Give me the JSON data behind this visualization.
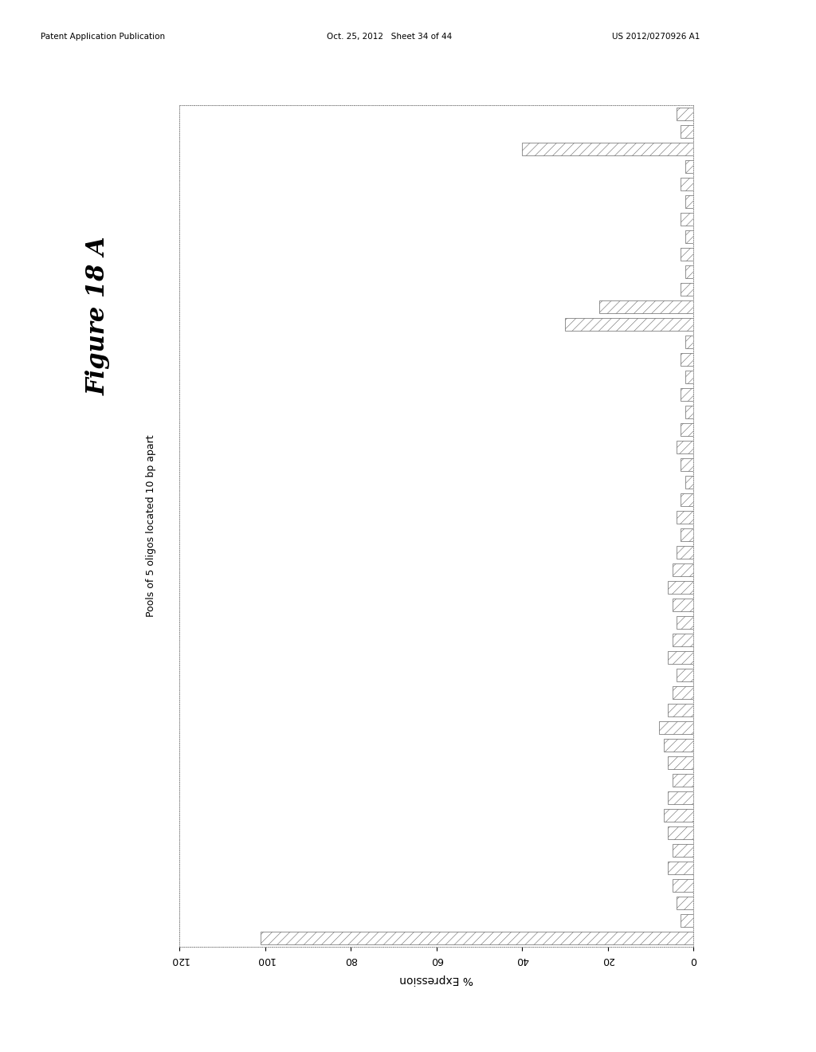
{
  "title": "Figure 18 A",
  "ylabel": "Pools of 5 oligos located 10 bp apart",
  "xlabel": "% Expression",
  "xlim": [
    0,
    120
  ],
  "xticks": [
    0,
    20,
    40,
    60,
    80,
    100,
    120
  ],
  "bar_values": [
    101,
    3,
    4,
    5,
    6,
    5,
    6,
    7,
    6,
    5,
    6,
    7,
    8,
    6,
    5,
    4,
    6,
    5,
    4,
    5,
    6,
    5,
    4,
    3,
    4,
    3,
    2,
    3,
    4,
    3,
    2,
    3,
    2,
    3,
    2,
    30,
    22,
    3,
    2,
    3,
    2,
    3,
    2,
    3,
    2,
    40,
    3,
    4
  ],
  "bar_color": "#cccccc",
  "background_color": "#ffffff",
  "hatch": "///",
  "header_left": "Patent Application Publication",
  "header_mid": "Oct. 25, 2012   Sheet 34 of 44",
  "header_right": "US 2012/0270926 A1"
}
